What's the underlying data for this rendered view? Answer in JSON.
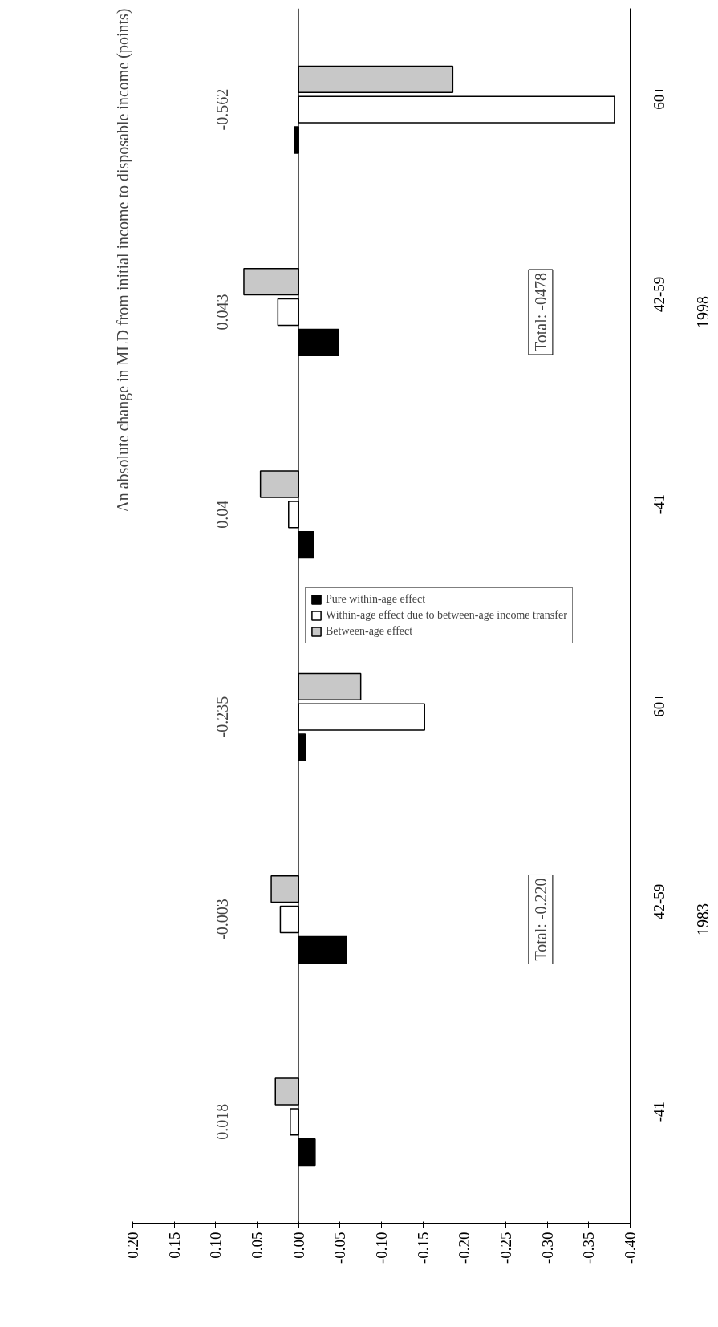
{
  "chart_data": {
    "type": "bar",
    "orientation": "horizontal",
    "title": "An absolute change in MLD from initial income to disposable income (points)",
    "categories": [
      "60+",
      "42-59",
      "-41",
      "60+",
      "42-59",
      "-41"
    ],
    "series": [
      {
        "name": "Pure within-age effect",
        "color": "#000000",
        "values": [
          0.005,
          -0.048,
          -0.018,
          -0.008,
          -0.058,
          -0.02
        ]
      },
      {
        "name": "Within-age effect due to between-age income transfer",
        "color": "#ffffff",
        "values": [
          -0.381,
          0.025,
          0.012,
          -0.152,
          0.022,
          0.01
        ]
      },
      {
        "name": "Between-age effect",
        "color": "#c8c8c8",
        "values": [
          -0.186,
          0.066,
          0.046,
          -0.075,
          0.033,
          0.028
        ]
      }
    ],
    "annotations": [
      "1998",
      "1983",
      "Total: -0478",
      "Total: -0.220",
      "-0.562",
      "0.043",
      "0.04",
      "-0.235",
      "-0.003",
      "0.018"
    ],
    "xlim": [
      0.2,
      -0.4
    ],
    "xticks": [
      {
        "value": 0.2,
        "label": "0.20"
      },
      {
        "value": 0.15,
        "label": "0.15"
      },
      {
        "value": 0.1,
        "label": "0.10"
      },
      {
        "value": 0.05,
        "label": "0.05"
      },
      {
        "value": 0,
        "label": "0.00"
      },
      {
        "value": -0.05,
        "label": "-0.05"
      },
      {
        "value": -0.1,
        "label": "-0.10"
      },
      {
        "value": -0.15,
        "label": "-0.15"
      },
      {
        "value": -0.2,
        "label": "-0.20"
      },
      {
        "value": -0.25,
        "label": "-0.25"
      },
      {
        "value": -0.3,
        "label": "-0.30"
      },
      {
        "value": -0.35,
        "label": "-0.35"
      },
      {
        "value": -0.4,
        "label": "-0.40"
      }
    ],
    "ref_lines": [
      {
        "axis": "x",
        "value": 0
      }
    ],
    "legend": "right"
  }
}
